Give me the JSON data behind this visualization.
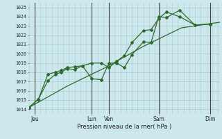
{
  "xlabel": "Pression niveau de la mer( hPa )",
  "bg_color": "#cce8ec",
  "grid_color": "#aacdd4",
  "line_color": "#2d6a2d",
  "ylim": [
    1013.5,
    1025.5
  ],
  "xlim": [
    0,
    100
  ],
  "xtick_positions": [
    3,
    33,
    42,
    68,
    95
  ],
  "xtick_labels": [
    "Jeu",
    "Lun",
    "Ven",
    "Sam",
    "Dim"
  ],
  "ytick_positions": [
    1014,
    1015,
    1016,
    1017,
    1018,
    1019,
    1020,
    1021,
    1022,
    1023,
    1024,
    1025
  ],
  "vline_positions": [
    3,
    33,
    42,
    68,
    95
  ],
  "line1_x": [
    0,
    5,
    10,
    14,
    17,
    20,
    24,
    28,
    33,
    38,
    42,
    46,
    50,
    54,
    60,
    64,
    68,
    72,
    79,
    87,
    95
  ],
  "line1_y": [
    1014.2,
    1015.1,
    1017.1,
    1017.8,
    1018.0,
    1018.4,
    1018.3,
    1018.7,
    1017.3,
    1017.2,
    1019.0,
    1019.0,
    1018.5,
    1019.9,
    1021.3,
    1021.2,
    1024.0,
    1023.9,
    1024.7,
    1023.1,
    1023.2
  ],
  "line2_x": [
    0,
    5,
    10,
    14,
    17,
    20,
    24,
    28,
    33,
    38,
    42,
    46,
    50,
    54,
    60,
    64,
    68,
    72,
    79,
    87,
    95
  ],
  "line2_y": [
    1014.2,
    1015.1,
    1017.8,
    1018.0,
    1018.2,
    1018.5,
    1018.6,
    1018.7,
    1019.0,
    1019.0,
    1018.5,
    1019.2,
    1019.8,
    1021.2,
    1022.5,
    1022.6,
    1023.8,
    1024.5,
    1024.0,
    1023.1,
    1023.2
  ],
  "line3_x": [
    0,
    20,
    40,
    60,
    80,
    100
  ],
  "line3_y": [
    1014.2,
    1016.5,
    1018.5,
    1020.8,
    1022.8,
    1023.4
  ]
}
